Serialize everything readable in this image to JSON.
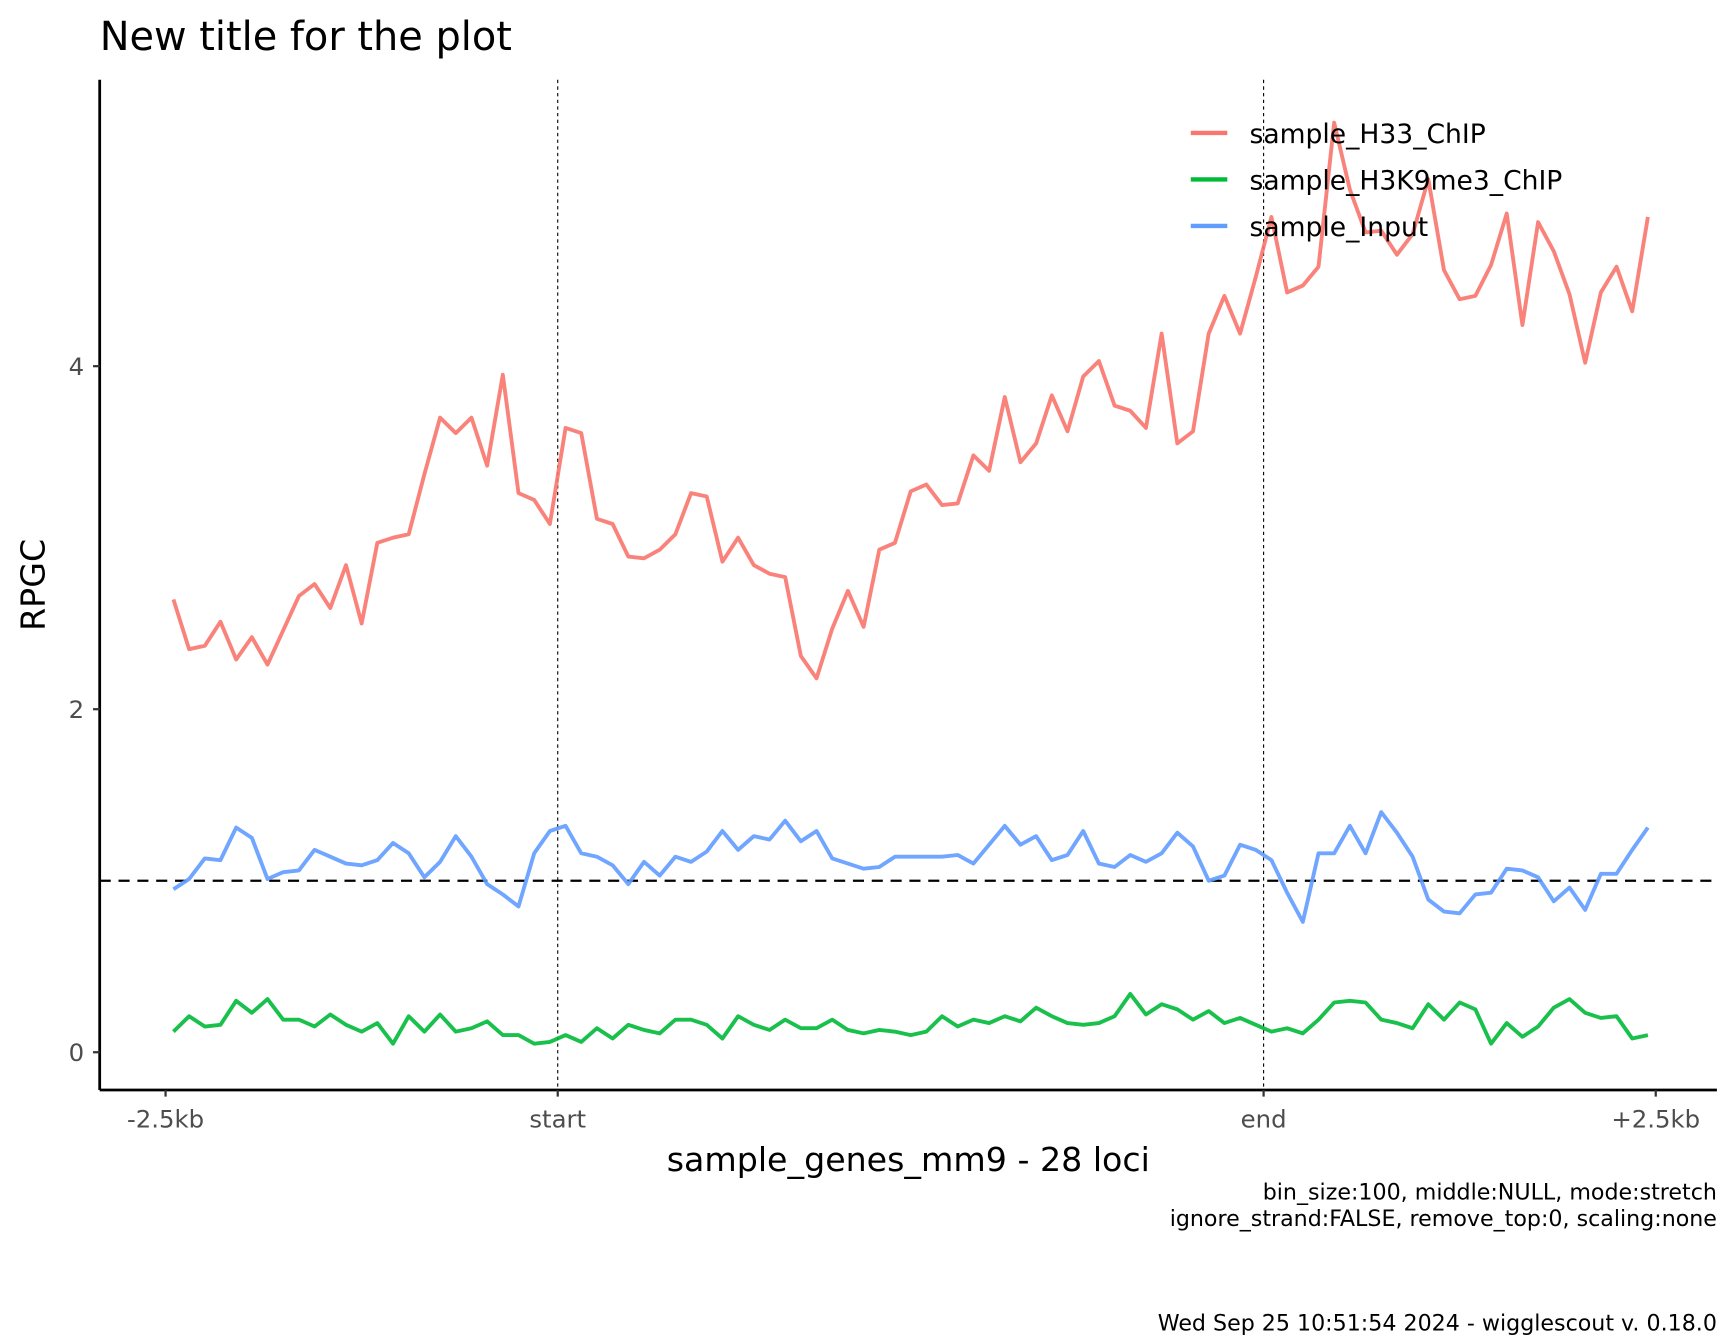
{
  "chart_data": {
    "type": "line",
    "title": "New title for the plot",
    "xlabel": "sample_genes_mm9 - 28 loci",
    "ylabel": "RPGC",
    "caption": [
      "bin_size:100, middle:NULL, mode:stretch",
      "ignore_strand:FALSE, remove_top:0, scaling:none"
    ],
    "footer": "Wed Sep 25 10:51:54 2024 - wigglescout v. 0.18.0",
    "x": [
      1,
      2,
      3,
      4,
      5,
      6,
      7,
      8,
      9,
      10,
      11,
      12,
      13,
      14,
      15,
      16,
      17,
      18,
      19,
      20,
      21,
      22,
      23,
      24,
      25,
      26,
      27,
      28,
      29,
      30,
      31,
      32,
      33,
      34,
      35,
      36,
      37,
      38,
      39,
      40,
      41,
      42,
      43,
      44,
      45,
      46,
      47,
      48,
      49,
      50,
      51,
      52,
      53,
      54,
      55,
      56,
      57,
      58,
      59,
      60,
      61,
      62,
      63,
      64,
      65,
      66,
      67,
      68,
      69,
      70,
      71,
      72,
      73,
      74,
      75,
      76,
      77,
      78,
      79,
      80,
      81,
      82,
      83,
      84,
      85,
      86,
      87,
      88,
      89,
      90,
      91,
      92,
      93,
      94,
      95
    ],
    "series": [
      {
        "name": "sample_H33_ChIP",
        "color": "#F8766D",
        "values": [
          2.64,
          2.35,
          2.37,
          2.51,
          2.29,
          2.42,
          2.26,
          2.46,
          2.66,
          2.73,
          2.59,
          2.84,
          2.5,
          2.97,
          3.0,
          3.02,
          3.37,
          3.7,
          3.61,
          3.7,
          3.42,
          3.95,
          3.26,
          3.22,
          3.08,
          3.64,
          3.61,
          3.11,
          3.08,
          2.89,
          2.88,
          2.93,
          3.02,
          3.26,
          3.24,
          2.86,
          3.0,
          2.84,
          2.79,
          2.77,
          2.31,
          2.18,
          2.47,
          2.69,
          2.48,
          2.93,
          2.97,
          3.27,
          3.31,
          3.19,
          3.2,
          3.48,
          3.39,
          3.82,
          3.44,
          3.55,
          3.83,
          3.62,
          3.94,
          4.03,
          3.77,
          3.74,
          3.64,
          4.19,
          3.55,
          3.62,
          4.19,
          4.41,
          4.19,
          4.52,
          4.87,
          4.43,
          4.47,
          4.58,
          5.42,
          5.03,
          4.78,
          4.79,
          4.65,
          4.77,
          5.09,
          4.56,
          4.39,
          4.41,
          4.59,
          4.89,
          4.24,
          4.84,
          4.67,
          4.42,
          4.02,
          4.43,
          4.58,
          4.32,
          4.87
        ]
      },
      {
        "name": "sample_H3K9me3_ChIP",
        "color": "#00BA38",
        "values": [
          0.12,
          0.21,
          0.15,
          0.16,
          0.3,
          0.23,
          0.31,
          0.19,
          0.19,
          0.15,
          0.22,
          0.16,
          0.12,
          0.17,
          0.05,
          0.21,
          0.12,
          0.22,
          0.12,
          0.14,
          0.18,
          0.1,
          0.1,
          0.05,
          0.06,
          0.1,
          0.06,
          0.14,
          0.08,
          0.16,
          0.13,
          0.11,
          0.19,
          0.19,
          0.16,
          0.08,
          0.21,
          0.16,
          0.13,
          0.19,
          0.14,
          0.14,
          0.19,
          0.13,
          0.11,
          0.13,
          0.12,
          0.1,
          0.12,
          0.21,
          0.15,
          0.19,
          0.17,
          0.21,
          0.18,
          0.26,
          0.21,
          0.17,
          0.16,
          0.17,
          0.21,
          0.34,
          0.22,
          0.28,
          0.25,
          0.19,
          0.24,
          0.17,
          0.2,
          0.16,
          0.12,
          0.14,
          0.11,
          0.19,
          0.29,
          0.3,
          0.29,
          0.19,
          0.17,
          0.14,
          0.28,
          0.19,
          0.29,
          0.25,
          0.05,
          0.17,
          0.09,
          0.15,
          0.26,
          0.31,
          0.23,
          0.2,
          0.21,
          0.08,
          0.1
        ]
      },
      {
        "name": "sample_Input",
        "color": "#619CFF",
        "values": [
          0.95,
          1.01,
          1.13,
          1.12,
          1.31,
          1.25,
          1.01,
          1.05,
          1.06,
          1.18,
          1.14,
          1.1,
          1.09,
          1.12,
          1.22,
          1.16,
          1.02,
          1.11,
          1.26,
          1.14,
          0.98,
          0.92,
          0.85,
          1.16,
          1.29,
          1.32,
          1.16,
          1.14,
          1.09,
          0.98,
          1.11,
          1.03,
          1.14,
          1.11,
          1.17,
          1.29,
          1.18,
          1.26,
          1.24,
          1.35,
          1.23,
          1.29,
          1.13,
          1.1,
          1.07,
          1.08,
          1.14,
          1.14,
          1.14,
          1.14,
          1.15,
          1.1,
          1.21,
          1.32,
          1.21,
          1.26,
          1.12,
          1.15,
          1.29,
          1.1,
          1.08,
          1.15,
          1.11,
          1.16,
          1.28,
          1.2,
          1.0,
          1.03,
          1.21,
          1.18,
          1.12,
          0.93,
          0.76,
          1.16,
          1.16,
          1.32,
          1.16,
          1.4,
          1.28,
          1.14,
          0.89,
          0.82,
          0.81,
          0.92,
          0.93,
          1.07,
          1.06,
          1.02,
          0.88,
          0.96,
          0.83,
          1.04,
          1.04,
          1.18,
          1.31
        ]
      }
    ],
    "xlim": [
      -3.7,
      99.4
    ],
    "ylim": [
      -0.22,
      5.67
    ],
    "xticks": [
      {
        "value": 0.5,
        "label": "-2.5kb"
      },
      {
        "value": 25.5,
        "label": "start"
      },
      {
        "value": 70.5,
        "label": "end"
      },
      {
        "value": 95.5,
        "label": "+2.5kb"
      }
    ],
    "yticks": [
      0,
      2,
      4
    ],
    "vlines": [
      25.5,
      70.5
    ],
    "hline": 1,
    "legend": "top-right"
  }
}
